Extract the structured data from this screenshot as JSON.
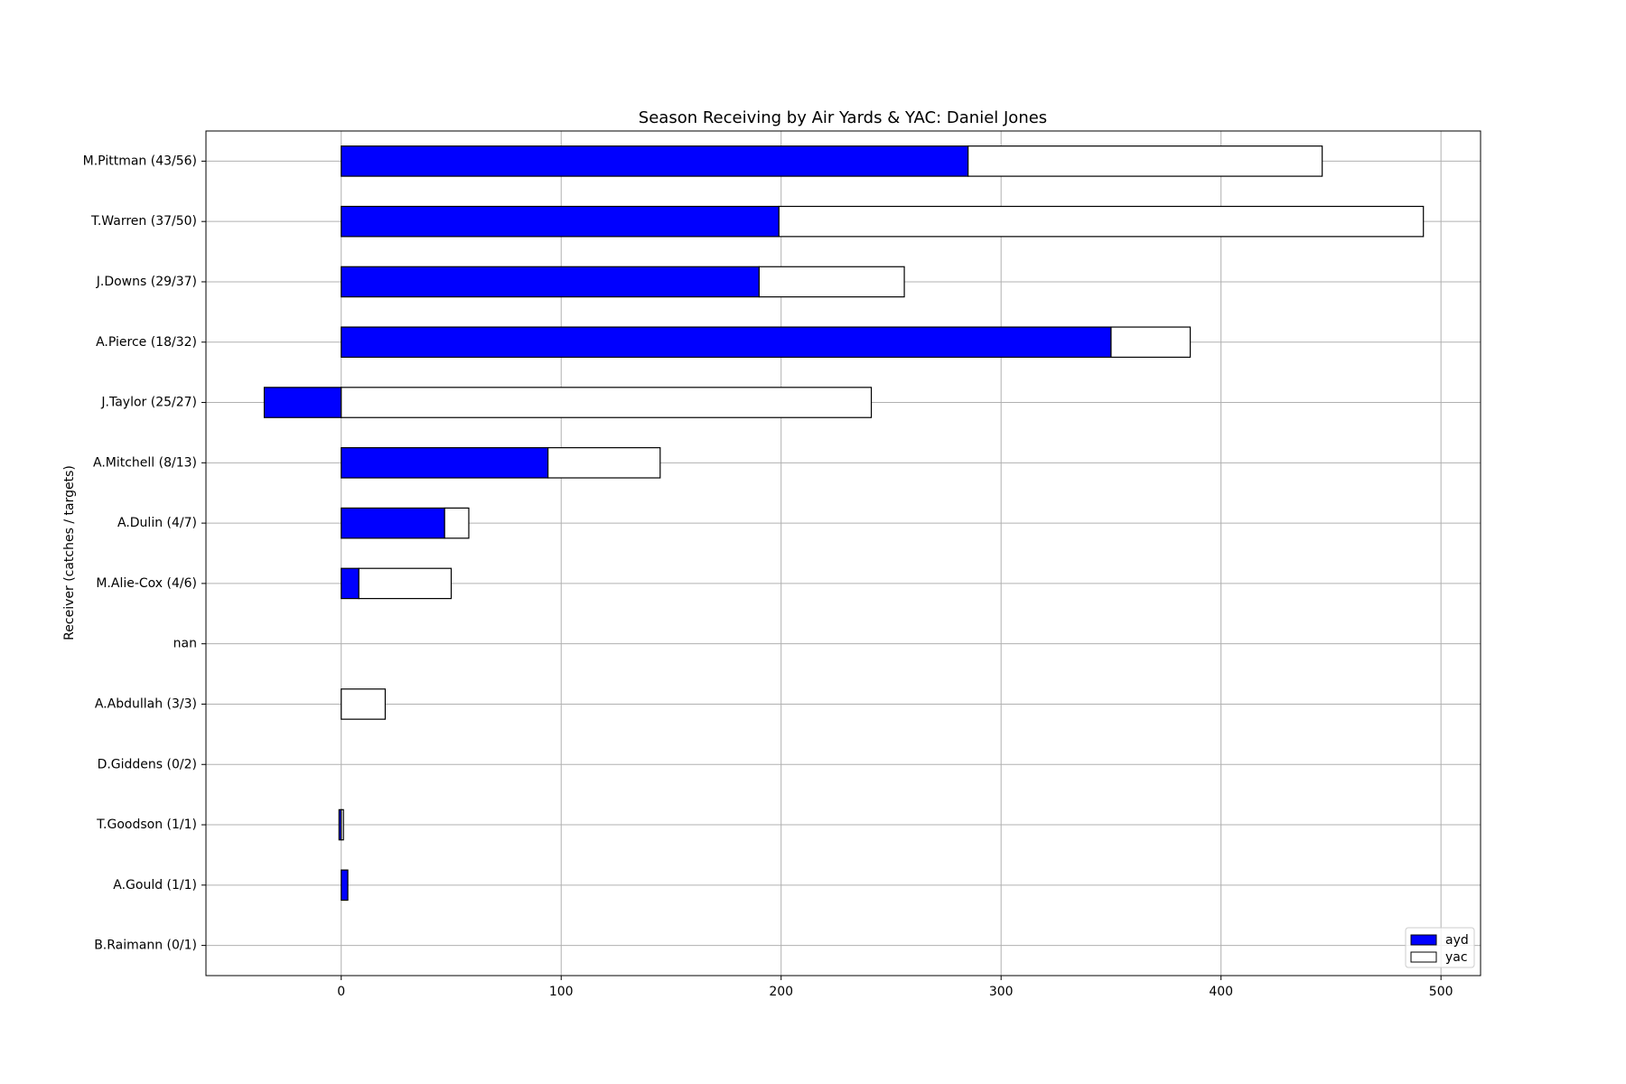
{
  "chart_data": {
    "type": "barh_stacked",
    "title": "Season Receiving by Air Yards & YAC: Daniel Jones",
    "y_label": "Receiver (catches / targets)",
    "categories": [
      "M.Pittman (43/56)",
      "T.Warren (37/50)",
      "J.Downs (29/37)",
      "A.Pierce (18/32)",
      "J.Taylor (25/27)",
      "A.Mitchell (8/13)",
      "A.Dulin (4/7)",
      "M.Alie-Cox (4/6)",
      "nan",
      "A.Abdullah (3/3)",
      "D.Giddens (0/2)",
      "T.Goodson (1/1)",
      "A.Gould (1/1)",
      "B.Raimann (0/1)"
    ],
    "series": [
      {
        "name": "ayd",
        "color": "#0000ff",
        "values": [
          285,
          199,
          190,
          350,
          -35,
          94,
          47,
          8,
          0,
          0,
          0,
          -1,
          3,
          0
        ]
      },
      {
        "name": "yac",
        "color": "#ffffff",
        "values": [
          161,
          293,
          66,
          36,
          241,
          51,
          11,
          42,
          0,
          20,
          0,
          1,
          0,
          0
        ]
      }
    ],
    "xlim": [
      -61.5,
      518
    ],
    "xticks": [
      0,
      100,
      200,
      300,
      400,
      500
    ],
    "grid": true,
    "legend_position": "lower right"
  }
}
